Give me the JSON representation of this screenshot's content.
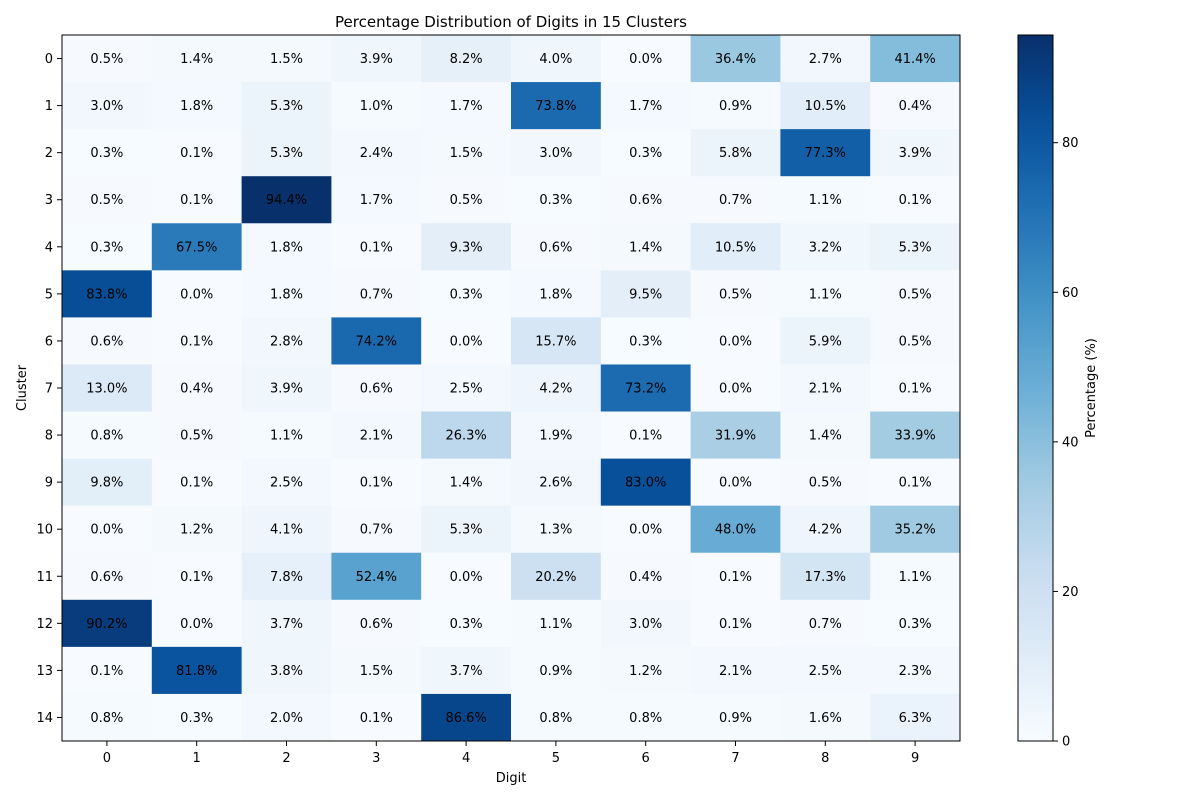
{
  "chart_data": {
    "type": "heatmap",
    "title": "Percentage Distribution of Digits in 15 Clusters",
    "xlabel": "Digit",
    "ylabel": "Cluster",
    "x_categories": [
      "0",
      "1",
      "2",
      "3",
      "4",
      "5",
      "6",
      "7",
      "8",
      "9"
    ],
    "y_categories": [
      "0",
      "1",
      "2",
      "3",
      "4",
      "5",
      "6",
      "7",
      "8",
      "9",
      "10",
      "11",
      "12",
      "13",
      "14"
    ],
    "values": [
      [
        0.5,
        1.4,
        1.5,
        3.9,
        8.2,
        4.0,
        0.0,
        36.4,
        2.7,
        41.4
      ],
      [
        3.0,
        1.8,
        5.3,
        1.0,
        1.7,
        73.8,
        1.7,
        0.9,
        10.5,
        0.4
      ],
      [
        0.3,
        0.1,
        5.3,
        2.4,
        1.5,
        3.0,
        0.3,
        5.8,
        77.3,
        3.9
      ],
      [
        0.5,
        0.1,
        94.4,
        1.7,
        0.5,
        0.3,
        0.6,
        0.7,
        1.1,
        0.1
      ],
      [
        0.3,
        67.5,
        1.8,
        0.1,
        9.3,
        0.6,
        1.4,
        10.5,
        3.2,
        5.3
      ],
      [
        83.8,
        0.0,
        1.8,
        0.7,
        0.3,
        1.8,
        9.5,
        0.5,
        1.1,
        0.5
      ],
      [
        0.6,
        0.1,
        2.8,
        74.2,
        0.0,
        15.7,
        0.3,
        0.0,
        5.9,
        0.5
      ],
      [
        13.0,
        0.4,
        3.9,
        0.6,
        2.5,
        4.2,
        73.2,
        0.0,
        2.1,
        0.1
      ],
      [
        0.8,
        0.5,
        1.1,
        2.1,
        26.3,
        1.9,
        0.1,
        31.9,
        1.4,
        33.9
      ],
      [
        9.8,
        0.1,
        2.5,
        0.1,
        1.4,
        2.6,
        83.0,
        0.0,
        0.5,
        0.1
      ],
      [
        0.0,
        1.2,
        4.1,
        0.7,
        5.3,
        1.3,
        0.0,
        48.0,
        4.2,
        35.2
      ],
      [
        0.6,
        0.1,
        7.8,
        52.4,
        0.0,
        20.2,
        0.4,
        0.1,
        17.3,
        1.1
      ],
      [
        90.2,
        0.0,
        3.7,
        0.6,
        0.3,
        1.1,
        3.0,
        0.1,
        0.7,
        0.3
      ],
      [
        0.1,
        81.8,
        3.8,
        1.5,
        3.7,
        0.9,
        1.2,
        2.1,
        2.5,
        2.3
      ],
      [
        0.8,
        0.3,
        2.0,
        0.1,
        86.6,
        0.8,
        0.8,
        0.9,
        1.6,
        6.3
      ]
    ],
    "value_suffix": "%",
    "colorbar": {
      "label": "Percentage (%)",
      "range": [
        0,
        94.4
      ],
      "ticks": [
        0,
        20,
        40,
        60,
        80
      ],
      "colormap": "Blues"
    },
    "grid": false
  }
}
